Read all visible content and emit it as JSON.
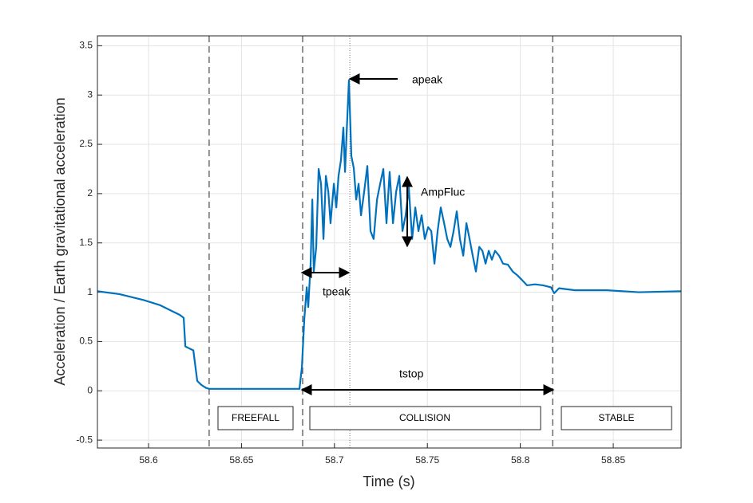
{
  "chart_data": {
    "type": "line",
    "x_label": "Time (s)",
    "y_label": "Acceleration / Earth gravitational acceleration",
    "xlim": [
      58.5725,
      58.8865
    ],
    "ylim": [
      -0.58,
      3.6
    ],
    "xticks": [
      58.6,
      58.65,
      58.7,
      58.75,
      58.8,
      58.85
    ],
    "yticks": [
      -0.5,
      0,
      0.5,
      1,
      1.5,
      2,
      2.5,
      3,
      3.5
    ],
    "grid": true,
    "color": "#0072bd",
    "x": [
      58.5725,
      58.5845,
      58.5974,
      58.606,
      58.6125,
      58.6168,
      58.6189,
      58.6198,
      58.6219,
      58.6241,
      58.6262,
      58.6284,
      58.6309,
      58.6326,
      58.649,
      58.6812,
      58.6825,
      58.6838,
      58.6851,
      58.6859,
      58.6872,
      58.6881,
      58.6889,
      58.6902,
      58.6915,
      58.6928,
      58.6941,
      58.6954,
      58.6967,
      58.6979,
      58.6997,
      58.701,
      58.7022,
      58.7035,
      58.7048,
      58.7057,
      58.7065,
      58.7078,
      58.7091,
      58.7104,
      58.7117,
      58.713,
      58.7143,
      58.716,
      58.7177,
      58.7194,
      58.7211,
      58.7229,
      58.7246,
      58.7263,
      58.728,
      58.7297,
      58.7315,
      58.7332,
      58.7349,
      58.7366,
      58.7383,
      58.74,
      58.7418,
      58.7435,
      58.7452,
      58.7469,
      58.7486,
      58.7504,
      58.7521,
      58.7538,
      58.7555,
      58.7572,
      58.759,
      58.7607,
      58.7624,
      58.7641,
      58.7658,
      58.7675,
      58.7693,
      58.771,
      58.7727,
      58.7744,
      58.7761,
      58.7779,
      58.7796,
      58.7813,
      58.783,
      58.7847,
      58.7864,
      58.7886,
      58.7907,
      58.7933,
      58.7959,
      58.7985,
      58.8011,
      58.8036,
      58.8079,
      58.8122,
      58.8165,
      58.8182,
      58.8208,
      58.8294,
      58.8466,
      58.8638,
      58.8865
    ],
    "values": [
      1.01,
      0.98,
      0.92,
      0.87,
      0.81,
      0.77,
      0.74,
      0.45,
      0.43,
      0.41,
      0.1,
      0.06,
      0.03,
      0.02,
      0.02,
      0.02,
      0.24,
      0.73,
      1.05,
      0.85,
      1.29,
      1.94,
      1.21,
      1.46,
      2.25,
      2.1,
      1.54,
      2.18,
      2.02,
      1.7,
      2.1,
      1.86,
      2.18,
      2.34,
      2.67,
      2.22,
      2.59,
      3.15,
      2.38,
      2.26,
      1.94,
      2.1,
      1.78,
      2.02,
      2.28,
      1.62,
      1.54,
      1.94,
      2.1,
      2.25,
      1.7,
      2.22,
      1.7,
      2.02,
      2.18,
      1.62,
      1.78,
      2.06,
      1.54,
      1.86,
      1.62,
      1.78,
      1.54,
      1.66,
      1.62,
      1.29,
      1.62,
      1.86,
      1.7,
      1.54,
      1.46,
      1.62,
      1.82,
      1.54,
      1.37,
      1.7,
      1.54,
      1.37,
      1.21,
      1.46,
      1.42,
      1.29,
      1.42,
      1.33,
      1.42,
      1.37,
      1.29,
      1.28,
      1.21,
      1.17,
      1.12,
      1.07,
      1.08,
      1.07,
      1.05,
      0.99,
      1.04,
      1.02,
      1.02,
      1.0,
      1.01
    ],
    "dashed_lines": [
      58.6326,
      58.6829,
      58.8174
    ],
    "dotted_lines": [
      58.7083
    ],
    "annotations": {
      "apeak": "apeak",
      "ampfluc": "AmpFluc",
      "tpeak": "tpeak",
      "tstop": "tstop"
    },
    "phases": [
      "FREEFALL",
      "COLLISION",
      "STABLE"
    ]
  }
}
